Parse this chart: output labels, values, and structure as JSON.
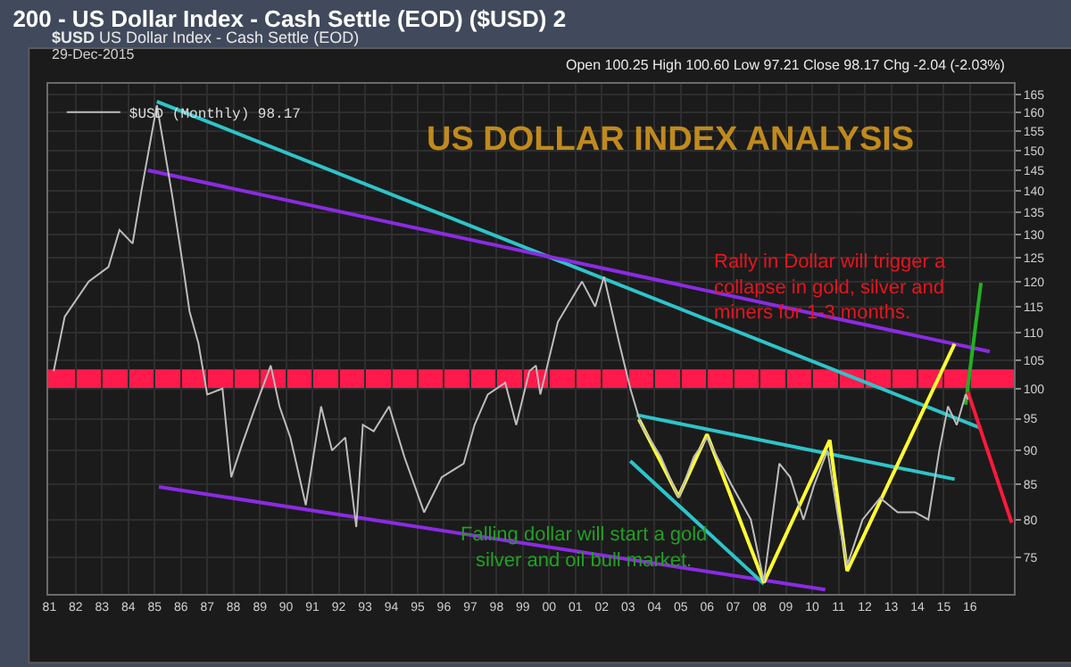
{
  "chart_data": {
    "type": "line",
    "title": "200 - US Dollar Index - Cash Settle (EOD) ($USD) 2",
    "subtitle": "$USD US Dollar Index - Cash Settle (EOD)",
    "annotations": [
      "29-Dec-2015",
      "Open 100.25 High 100.60 Low 97.21 Close 98.17 Chg -2.04 (-2.03%)",
      "US DOLLAR INDEX ANALYSIS",
      "Rally in Dollar will trigger a\ncollapse in gold, silver and\nminers for 1-3 months.",
      "Falling dollar will start a gold\nsilver and oil bull market."
    ],
    "log": "y",
    "grid": true,
    "legend": "top left",
    "xlim": [
      "1980-12-15",
      "2017-09"
    ],
    "xticks": [
      {
        "value": "1981-01",
        "label": "81"
      },
      {
        "value": "1982-01",
        "label": "82"
      },
      {
        "value": "1983-01",
        "label": "83"
      },
      {
        "value": "1984-01",
        "label": "84"
      },
      {
        "value": "1985-01",
        "label": "85"
      },
      {
        "value": "1986-01",
        "label": "86"
      },
      {
        "value": "1987-01",
        "label": "87"
      },
      {
        "value": "1988-01",
        "label": "88"
      },
      {
        "value": "1989-01",
        "label": "89"
      },
      {
        "value": "1990-01",
        "label": "90"
      },
      {
        "value": "1991-01",
        "label": "91"
      },
      {
        "value": "1992-01",
        "label": "92"
      },
      {
        "value": "1993-01",
        "label": "93"
      },
      {
        "value": "1994-01",
        "label": "94"
      },
      {
        "value": "1995-01",
        "label": "95"
      },
      {
        "value": "1996-01",
        "label": "96"
      },
      {
        "value": "1997-01",
        "label": "97"
      },
      {
        "value": "1998-01",
        "label": "98"
      },
      {
        "value": "1999-01",
        "label": "99"
      },
      {
        "value": "2000-01",
        "label": "00"
      },
      {
        "value": "2001-01",
        "label": "01"
      },
      {
        "value": "2002-01",
        "label": "02"
      },
      {
        "value": "2003-01",
        "label": "03"
      },
      {
        "value": "2004-01",
        "label": "04"
      },
      {
        "value": "2005-01",
        "label": "05"
      },
      {
        "value": "2006-01",
        "label": "06"
      },
      {
        "value": "2007-01",
        "label": "07"
      },
      {
        "value": "2008-01",
        "label": "08"
      },
      {
        "value": "2009-01",
        "label": "09"
      },
      {
        "value": "2010-01",
        "label": "10"
      },
      {
        "value": "2011-01",
        "label": "11"
      },
      {
        "value": "2012-01",
        "label": "12"
      },
      {
        "value": "2013-01",
        "label": "13"
      },
      {
        "value": "2014-01",
        "label": "14"
      },
      {
        "value": "2015-01",
        "label": "15"
      },
      {
        "value": "2016-01",
        "label": "16"
      }
    ],
    "ylim": [
      70.5,
      168
    ],
    "yticks": [
      75,
      80,
      85,
      90,
      95,
      100,
      105,
      110,
      115,
      120,
      125,
      130,
      135,
      140,
      145,
      150,
      155,
      160,
      165
    ],
    "bands": [
      {
        "axis": "y",
        "from": 100,
        "to": 103.3,
        "color": "#ff1a4b"
      }
    ],
    "series": [
      {
        "name": "$USD (Monthly) 98.17",
        "color": "#bdbdbd",
        "x": [
          "1981-03",
          "1981-08",
          "1982-07",
          "1983-04",
          "1983-09",
          "1984-03",
          "1984-07",
          "1984-10",
          "1985-02",
          "1985-05",
          "1985-09",
          "1986-02",
          "1986-05",
          "1986-09",
          "1987-01",
          "1987-08",
          "1987-12",
          "1988-05",
          "1988-11",
          "1989-06",
          "1989-10",
          "1990-03",
          "1990-10",
          "1991-05",
          "1991-10",
          "1992-04",
          "1992-09",
          "1992-12",
          "1993-05",
          "1993-12",
          "1994-07",
          "1995-04",
          "1995-12",
          "1996-10",
          "1997-03",
          "1997-09",
          "1998-05",
          "1998-10",
          "1999-04",
          "1999-07",
          "1999-09",
          "2000-05",
          "2001-04",
          "2001-10",
          "2002-02",
          "2002-09",
          "2003-02",
          "2003-07",
          "2004-04",
          "2004-12",
          "2005-07",
          "2006-01",
          "2006-12",
          "2007-09",
          "2008-03",
          "2008-10",
          "2009-03",
          "2009-09",
          "2010-02",
          "2010-08",
          "2011-01",
          "2011-05",
          "2011-12",
          "2012-08",
          "2013-04",
          "2013-12",
          "2014-06",
          "2014-11",
          "2015-03",
          "2015-07",
          "2015-11",
          "2015-12"
        ],
        "values": [
          103,
          113,
          120,
          123,
          131,
          128,
          140,
          149,
          162,
          152,
          139,
          123,
          114,
          108,
          99,
          100,
          86,
          91,
          97,
          104,
          97,
          92,
          82,
          97,
          90,
          92,
          79,
          94,
          93,
          97,
          89,
          81,
          86,
          88,
          94,
          99,
          101,
          94,
          103,
          104,
          99,
          112,
          120,
          115,
          121,
          108,
          100,
          94,
          89,
          83,
          89,
          92,
          85,
          80,
          72,
          88,
          86,
          80,
          85,
          90,
          80,
          74,
          80,
          83,
          81,
          81,
          80,
          90,
          97,
          94,
          99,
          98.17
        ]
      },
      {
        "type": "line",
        "color": "#2ec4c9",
        "x": [
          "1985-02",
          "2016-06"
        ],
        "values": [
          163,
          93.5
        ]
      },
      {
        "type": "line",
        "color": "#8a2be2",
        "x": [
          "1984-10",
          "2016-10"
        ],
        "values": [
          145,
          106.5
        ]
      },
      {
        "type": "line",
        "color": "#8a2be2",
        "x": [
          "1985-03",
          "2010-07"
        ],
        "values": [
          84.6,
          71
        ]
      },
      {
        "type": "line",
        "color": "#2ec4c9",
        "x": [
          "2003-05",
          "2015-06"
        ],
        "values": [
          95.6,
          85.7
        ]
      },
      {
        "type": "line",
        "color": "#2ec4c9",
        "x": [
          "2003-02",
          "2008-03"
        ],
        "values": [
          88.4,
          71.7
        ]
      },
      {
        "type": "line",
        "color": "#ffff33",
        "x": [
          "2003-06",
          "2004-12",
          "2006-01",
          "2008-03",
          "2010-09",
          "2011-05",
          "2015-06"
        ],
        "values": [
          94.9,
          83.2,
          92.5,
          71.9,
          91.6,
          73.3,
          107.9
        ]
      },
      {
        "type": "line",
        "color": "#22b022",
        "x": [
          "2015-11",
          "2016-06"
        ],
        "values": [
          97.3,
          119.7
        ]
      },
      {
        "type": "line",
        "color": "#ff1a3c",
        "x": [
          "2015-12",
          "2017-08"
        ],
        "values": [
          99.5,
          79.6
        ]
      }
    ]
  }
}
